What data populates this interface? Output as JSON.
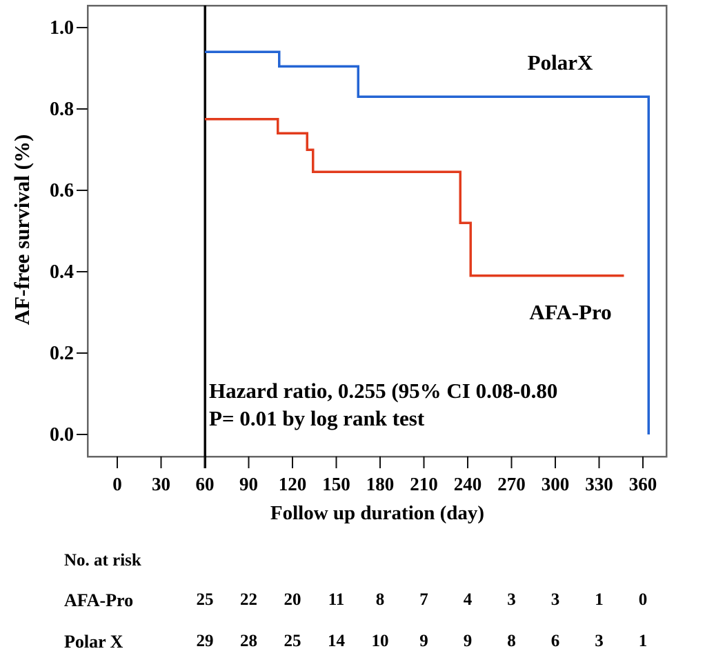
{
  "chart_data": {
    "type": "line",
    "subtype": "kaplan-meier-step",
    "title": "",
    "xlabel": "Follow up duration (day)",
    "ylabel": "AF-free survival (%)",
    "xlim": [
      -20,
      376
    ],
    "ylim": [
      -0.05,
      1.05
    ],
    "x_ticks": [
      0,
      30,
      60,
      90,
      120,
      150,
      180,
      210,
      240,
      270,
      300,
      330,
      360
    ],
    "y_ticks": [
      0.0,
      0.2,
      0.4,
      0.6,
      0.8,
      1.0
    ],
    "grid": false,
    "legend_position": "in-plot-text-labels",
    "landmark_line_x": 60,
    "landmark_line_color": "#000000",
    "frame_color": "#666666",
    "series": [
      {
        "name": "PolarX",
        "color": "#2465d4",
        "points": [
          [
            60,
            0.94
          ],
          [
            111,
            0.94
          ],
          [
            111,
            0.905
          ],
          [
            165,
            0.905
          ],
          [
            165,
            0.83
          ],
          [
            364,
            0.83
          ],
          [
            364,
            0.0
          ]
        ]
      },
      {
        "name": "AFA-Pro",
        "color": "#e23c1d",
        "points": [
          [
            60,
            0.775
          ],
          [
            110,
            0.775
          ],
          [
            110,
            0.74
          ],
          [
            130,
            0.74
          ],
          [
            130,
            0.7
          ],
          [
            134,
            0.7
          ],
          [
            134,
            0.645
          ],
          [
            235,
            0.645
          ],
          [
            235,
            0.52
          ],
          [
            242,
            0.52
          ],
          [
            242,
            0.39
          ],
          [
            347,
            0.39
          ]
        ]
      }
    ],
    "annotations": [
      "Hazard ratio,  0.255 (95% CI 0.08-0.80",
      "P= 0.01 by log rank test"
    ]
  },
  "risk_table": {
    "header": "No. at risk",
    "time_points": [
      60,
      90,
      120,
      150,
      180,
      210,
      240,
      270,
      300,
      330,
      360
    ],
    "rows": [
      {
        "label": "AFA-Pro",
        "values": [
          25,
          22,
          20,
          11,
          8,
          7,
          4,
          3,
          3,
          1,
          0
        ]
      },
      {
        "label": "Polar X",
        "values": [
          29,
          28,
          25,
          14,
          10,
          9,
          9,
          8,
          6,
          3,
          1
        ]
      }
    ]
  }
}
